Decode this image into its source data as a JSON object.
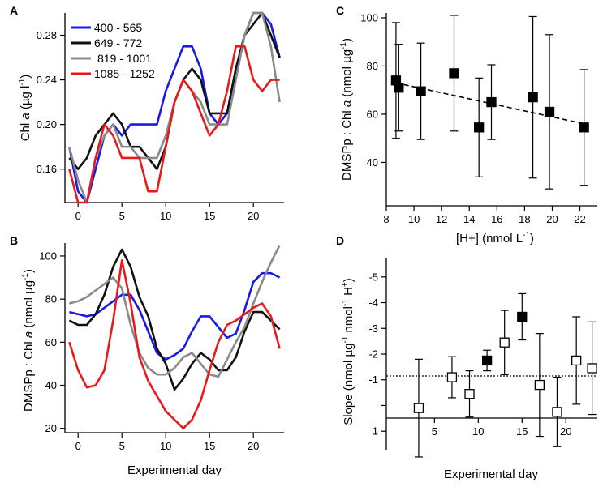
{
  "chart_data": [
    {
      "panel": "A",
      "type": "line",
      "ylabel": "Chl a (µg l⁻¹)",
      "xlabel": "",
      "ylim": [
        0.13,
        0.3
      ],
      "xlim": [
        -1.5,
        23.5
      ],
      "yticks": [
        0.16,
        0.2,
        0.24,
        0.28
      ],
      "ytick_labels": [
        "0.16",
        "0.20",
        "0.24",
        "0.28"
      ],
      "xticks": [
        0,
        5,
        10,
        15,
        20
      ],
      "xtick_labels": [
        "0",
        "5",
        "10",
        "15",
        "20"
      ],
      "legend": "top-left",
      "series": [
        {
          "name": "400 - 565",
          "color": "#1a1ae6",
          "x": [
            -1,
            0,
            1,
            2,
            3,
            4,
            5,
            6,
            7,
            8,
            9,
            10,
            11,
            12,
            13,
            14,
            15,
            16,
            17,
            18,
            19,
            20,
            21,
            22,
            23
          ],
          "y": [
            0.18,
            0.14,
            0.13,
            0.16,
            0.19,
            0.2,
            0.19,
            0.2,
            0.2,
            0.2,
            0.2,
            0.23,
            0.25,
            0.27,
            0.27,
            0.25,
            0.21,
            0.2,
            0.21,
            0.25,
            0.28,
            0.3,
            0.3,
            0.29,
            0.26
          ]
        },
        {
          "name": "649 - 772",
          "color": "#111111",
          "x": [
            -1,
            0,
            1,
            2,
            3,
            4,
            5,
            6,
            7,
            8,
            9,
            10,
            11,
            12,
            13,
            14,
            15,
            16,
            17,
            18,
            19,
            20,
            21,
            22,
            23
          ],
          "y": [
            0.17,
            0.16,
            0.17,
            0.19,
            0.2,
            0.21,
            0.2,
            0.18,
            0.18,
            0.17,
            0.16,
            0.18,
            0.22,
            0.24,
            0.25,
            0.24,
            0.21,
            0.21,
            0.21,
            0.25,
            0.28,
            0.29,
            0.3,
            0.28,
            0.26
          ]
        },
        {
          "name": "819 - 1001",
          "color": "#8a8a8a",
          "x": [
            -1,
            0,
            1,
            2,
            3,
            4,
            5,
            6,
            7,
            8,
            9,
            10,
            11,
            12,
            13,
            14,
            15,
            16,
            17,
            18,
            19,
            20,
            21,
            22,
            23
          ],
          "y": [
            0.18,
            0.15,
            0.13,
            0.17,
            0.19,
            0.2,
            0.18,
            0.18,
            0.17,
            0.17,
            0.17,
            0.19,
            0.22,
            0.24,
            0.23,
            0.22,
            0.2,
            0.2,
            0.2,
            0.24,
            0.28,
            0.3,
            0.3,
            0.27,
            0.22
          ]
        },
        {
          "name": "1085 - 1252",
          "color": "#e61a1a",
          "x": [
            -1,
            0,
            1,
            2,
            3,
            4,
            5,
            6,
            7,
            8,
            9,
            10,
            11,
            12,
            13,
            14,
            15,
            16,
            17,
            18,
            19,
            20,
            21,
            22,
            23
          ],
          "y": [
            0.16,
            0.13,
            0.13,
            0.17,
            0.2,
            0.19,
            0.17,
            0.17,
            0.17,
            0.14,
            0.14,
            0.18,
            0.22,
            0.24,
            0.23,
            0.21,
            0.19,
            0.2,
            0.23,
            0.27,
            0.27,
            0.24,
            0.23,
            0.24,
            0.24
          ]
        }
      ]
    },
    {
      "panel": "B",
      "type": "line",
      "ylabel": "DMSPp : Chl a (nmol µg⁻¹)",
      "xlabel": "Experimental day",
      "ylim": [
        18,
        106
      ],
      "xlim": [
        -1.5,
        23.5
      ],
      "yticks": [
        20,
        40,
        60,
        80,
        100
      ],
      "ytick_labels": [
        "20",
        "40",
        "60",
        "80",
        "100"
      ],
      "xticks": [
        0,
        5,
        10,
        15,
        20
      ],
      "xtick_labels": [
        "0",
        "5",
        "10",
        "15",
        "20"
      ],
      "series": [
        {
          "name": "400 - 565",
          "color": "#1a1ae6",
          "x": [
            -1,
            0,
            1,
            2,
            3,
            4,
            5,
            6,
            7,
            8,
            9,
            10,
            11,
            12,
            13,
            14,
            15,
            16,
            17,
            18,
            19,
            20,
            21,
            22,
            23
          ],
          "y": [
            74,
            73,
            72,
            73,
            76,
            79,
            82,
            82,
            75,
            65,
            55,
            52,
            54,
            57,
            65,
            72,
            72,
            67,
            62,
            64,
            75,
            88,
            92,
            92,
            90
          ]
        },
        {
          "name": "649 - 772",
          "color": "#111111",
          "x": [
            -1,
            0,
            1,
            2,
            3,
            4,
            5,
            6,
            7,
            8,
            9,
            10,
            11,
            12,
            13,
            14,
            15,
            16,
            17,
            18,
            19,
            20,
            21,
            22,
            23
          ],
          "y": [
            70,
            68,
            68,
            73,
            82,
            95,
            103,
            95,
            81,
            72,
            57,
            50,
            38,
            43,
            50,
            55,
            52,
            47,
            47,
            53,
            65,
            74,
            74,
            70,
            66
          ]
        },
        {
          "name": "819 - 1001",
          "color": "#8a8a8a",
          "x": [
            -1,
            0,
            1,
            2,
            3,
            4,
            5,
            6,
            7,
            8,
            9,
            10,
            11,
            12,
            13,
            14,
            15,
            16,
            17,
            18,
            19,
            20,
            21,
            22,
            23
          ],
          "y": [
            78,
            79,
            81,
            84,
            87,
            90,
            85,
            68,
            55,
            48,
            45,
            45,
            48,
            53,
            55,
            50,
            45,
            44,
            52,
            60,
            67,
            78,
            88,
            97,
            105
          ]
        },
        {
          "name": "1085 - 1252",
          "color": "#e61a1a",
          "x": [
            -1,
            0,
            1,
            2,
            3,
            4,
            5,
            6,
            7,
            8,
            9,
            10,
            11,
            12,
            13,
            14,
            15,
            16,
            17,
            18,
            19,
            20,
            21,
            22,
            23
          ],
          "y": [
            60,
            47,
            39,
            40,
            47,
            70,
            98,
            78,
            53,
            42,
            35,
            28,
            24,
            20,
            24,
            33,
            47,
            60,
            68,
            70,
            73,
            76,
            78,
            72,
            57
          ]
        }
      ]
    },
    {
      "panel": "C",
      "type": "scatter",
      "ylabel": "DMSPp : Chl a (nmol µg⁻¹)",
      "xlabel": "[H+] (nmol L⁻¹)",
      "ylim": [
        22,
        102
      ],
      "xlim": [
        8,
        23.2
      ],
      "yticks": [
        40,
        60,
        80,
        100
      ],
      "ytick_labels": [
        "40",
        "60",
        "80",
        "100"
      ],
      "xticks": [
        8,
        10,
        12,
        14,
        16,
        18,
        20,
        22
      ],
      "xtick_labels": [
        "8",
        "10",
        "12",
        "14",
        "16",
        "18",
        "20",
        "22"
      ],
      "points": [
        {
          "x": 8.7,
          "y": 74,
          "err": 24
        },
        {
          "x": 8.9,
          "y": 71,
          "err": 18
        },
        {
          "x": 10.5,
          "y": 69.5,
          "err": 20
        },
        {
          "x": 12.9,
          "y": 77,
          "err": 24
        },
        {
          "x": 14.7,
          "y": 54.5,
          "err": 20.5
        },
        {
          "x": 15.6,
          "y": 65,
          "err": 15.5
        },
        {
          "x": 18.6,
          "y": 67,
          "err": 33.5
        },
        {
          "x": 19.8,
          "y": 61,
          "err": 32
        },
        {
          "x": 22.3,
          "y": 54.5,
          "err": 24
        }
      ],
      "fit": {
        "x": [
          8.7,
          22.3
        ],
        "y": [
          73,
          56
        ]
      }
    },
    {
      "panel": "D",
      "type": "scatter",
      "ylabel": "Slope (nmol µg⁻¹ nmol⁻¹ H⁺)",
      "xlabel": "Experimental day",
      "ylim": [
        1.75,
        -5.75
      ],
      "xlim": [
        -0.5,
        23.5
      ],
      "yticks": [
        1,
        0,
        -1,
        -2,
        -3,
        -4,
        -5
      ],
      "ytick_labels": [
        "1",
        "",
        "-1",
        "-2",
        "-3",
        "-4",
        "-5"
      ],
      "xticks": [
        5,
        10,
        15,
        20
      ],
      "xtick_labels": [
        "5",
        "10",
        "15",
        "20"
      ],
      "reference_line": -1.15,
      "points": [
        {
          "x": 3.2,
          "y": 0.1,
          "err": 1.9,
          "filled": false
        },
        {
          "x": 7.0,
          "y": -1.1,
          "err": 0.8,
          "filled": false
        },
        {
          "x": 9.0,
          "y": -0.45,
          "err": 0.9,
          "filled": false
        },
        {
          "x": 11.0,
          "y": -1.75,
          "err": 0.4,
          "filled": true
        },
        {
          "x": 13.0,
          "y": -2.45,
          "err": 1.25,
          "filled": false
        },
        {
          "x": 15.0,
          "y": -3.45,
          "err": 0.9,
          "filled": true
        },
        {
          "x": 17.0,
          "y": -0.8,
          "err": 2.0,
          "filled": false
        },
        {
          "x": 19.0,
          "y": 0.25,
          "err": 1.35,
          "filled": false
        },
        {
          "x": 21.2,
          "y": -1.75,
          "err": 1.7,
          "filled": false
        },
        {
          "x": 23.0,
          "y": -1.45,
          "err": 1.8,
          "filled": false
        }
      ]
    }
  ]
}
